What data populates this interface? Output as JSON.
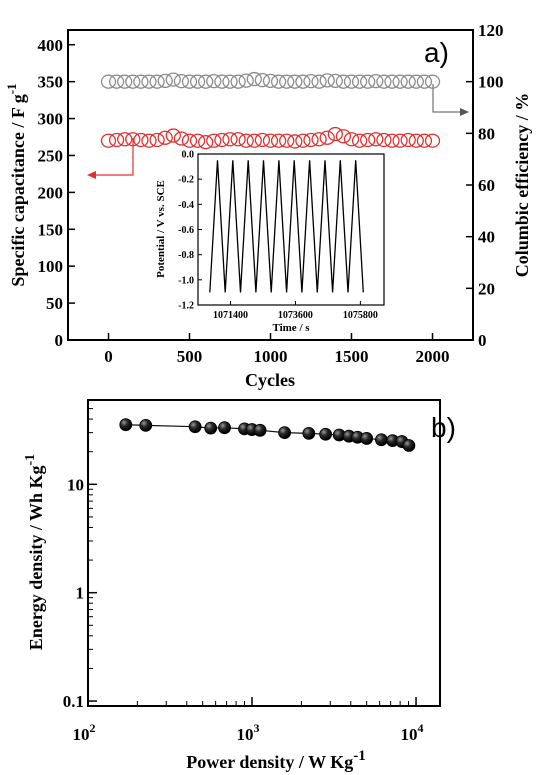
{
  "chart_data": [
    {
      "type": "scatter",
      "panel_label": "a)",
      "xlabel": "Cycles",
      "ylabel_left": "Specific capacitance / F g",
      "ylabel_left_sup": "-1",
      "ylabel_right": "Columbic efficiency / %",
      "xticks": [
        "0",
        "500",
        "1000",
        "1500",
        "2000"
      ],
      "yticks_left": [
        "0",
        "50",
        "100",
        "150",
        "200",
        "250",
        "300",
        "350",
        "400"
      ],
      "yticks_right": [
        "0",
        "20",
        "40",
        "60",
        "80",
        "100",
        "120"
      ],
      "xlim": [
        -250,
        2250
      ],
      "ylim_left": [
        0,
        420
      ],
      "ylim_right": [
        0,
        120
      ],
      "series": [
        {
          "axis": "right",
          "color": "#8c8c8c",
          "x": [
            0,
            50,
            100,
            150,
            200,
            250,
            300,
            350,
            400,
            450,
            500,
            550,
            600,
            650,
            700,
            750,
            800,
            850,
            900,
            950,
            1000,
            1050,
            1100,
            1150,
            1200,
            1250,
            1300,
            1350,
            1400,
            1450,
            1500,
            1550,
            1600,
            1650,
            1700,
            1750,
            1800,
            1850,
            1900,
            1950,
            2000
          ],
          "y": [
            100,
            100,
            100,
            100,
            100,
            100,
            100,
            100.3,
            100.8,
            100.2,
            100,
            100,
            100,
            100.2,
            100,
            100,
            100,
            100.4,
            101,
            100.6,
            100.3,
            100,
            100,
            100,
            100,
            100.2,
            100,
            100.5,
            100.3,
            100,
            100,
            100,
            100,
            100.2,
            100,
            100,
            100,
            100,
            100,
            100,
            100
          ]
        },
        {
          "axis": "left",
          "color": "#e03030",
          "x": [
            0,
            50,
            100,
            150,
            200,
            250,
            300,
            350,
            400,
            450,
            500,
            550,
            600,
            650,
            700,
            750,
            800,
            850,
            900,
            950,
            1000,
            1050,
            1100,
            1150,
            1200,
            1250,
            1300,
            1350,
            1400,
            1450,
            1500,
            1550,
            1600,
            1650,
            1700,
            1750,
            1800,
            1850,
            1900,
            1950,
            2000
          ],
          "y": [
            270,
            271,
            272,
            272,
            271,
            270,
            271,
            274,
            277,
            273,
            270,
            270,
            268,
            270,
            271,
            272,
            272,
            270,
            270,
            271,
            270,
            270,
            270,
            269,
            270,
            271,
            272,
            274,
            279,
            276,
            272,
            270,
            271,
            272,
            271,
            270,
            270,
            271,
            270,
            270,
            270
          ]
        }
      ],
      "inset": {
        "type": "line",
        "xlabel": "Time / s",
        "ylabel": "Potential / V vs. SCE",
        "xticks": [
          "1071400",
          "1073600",
          "1075800"
        ],
        "yticks": [
          "0.0",
          "-0.2",
          "-0.4",
          "-0.6",
          "-0.8",
          "-1.0",
          "-1.2"
        ],
        "xlim": [
          1070300,
          1076600
        ],
        "ylim": [
          -1.2,
          0
        ],
        "cycles": 10,
        "x_start": 1070700,
        "period": 520,
        "v_min": -1.1,
        "v_max": -0.05
      }
    },
    {
      "type": "scatter",
      "panel_label": "b)",
      "xlabel": "Power density / W Kg",
      "xlabel_sup": "-1",
      "ylabel": "Energy density  / Wh Kg",
      "ylabel_sup": "-1",
      "xscale": "log",
      "yscale": "log",
      "xticks": [
        {
          "base": "10",
          "exp": "2"
        },
        {
          "base": "10",
          "exp": "3"
        },
        {
          "base": "10",
          "exp": "4"
        }
      ],
      "yticks": [
        "0.1",
        "1",
        "10"
      ],
      "xlim": [
        100,
        14000
      ],
      "ylim": [
        0.09,
        60
      ],
      "color": "#111111",
      "x": [
        170,
        225,
        450,
        560,
        680,
        900,
        1000,
        1120,
        1580,
        2220,
        2810,
        3400,
        3900,
        4400,
        5000,
        6150,
        7200,
        8200,
        9050
      ],
      "y": [
        35.5,
        35.0,
        34.0,
        33.0,
        33.3,
        32.5,
        32.0,
        31.5,
        30.0,
        29.5,
        29.0,
        28.5,
        27.8,
        27.2,
        26.5,
        25.8,
        25.3,
        24.8,
        22.8
      ]
    }
  ]
}
